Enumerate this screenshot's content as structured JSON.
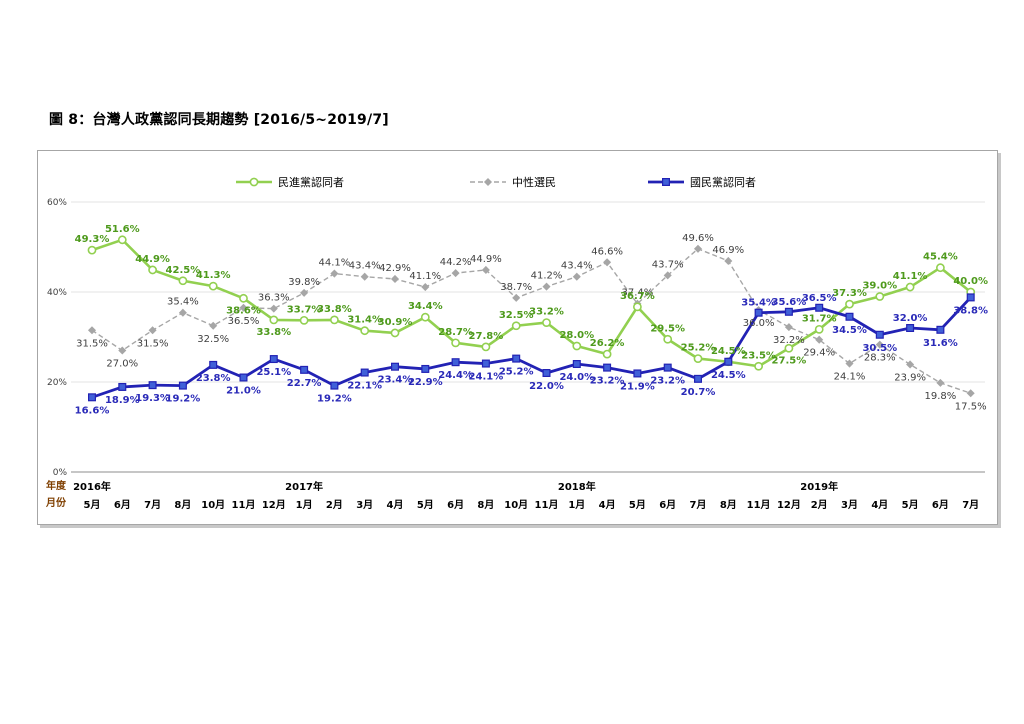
{
  "figure_title": "圖 8：台灣人政黨認同長期趨勢  [2016/5~2019/7]",
  "axis": {
    "row_label_year": "年度",
    "row_label_month": "月份",
    "yticks": [
      "0%",
      "20%",
      "40%",
      "60%"
    ]
  },
  "colors": {
    "dpp": "#92d050",
    "dpp_label": "#4e9a1c",
    "neutral": "#a6a6a6",
    "neutral_label": "#404040",
    "kmt": "#2222b4",
    "kmt_label": "#2a2ab8",
    "axis_label": "#7f3f00"
  },
  "chart_data": {
    "type": "line",
    "title": "",
    "ylabel": "",
    "ylim": [
      0,
      60
    ],
    "grid": true,
    "legend_position": "top",
    "categories": [
      "5月",
      "6月",
      "7月",
      "8月",
      "10月",
      "11月",
      "12月",
      "1月",
      "2月",
      "3月",
      "4月",
      "5月",
      "6月",
      "8月",
      "10月",
      "11月",
      "1月",
      "4月",
      "5月",
      "6月",
      "7月",
      "8月",
      "11月",
      "12月",
      "2月",
      "3月",
      "4月",
      "5月",
      "6月",
      "7月"
    ],
    "year_labels": [
      {
        "index": 0,
        "label": "2016年"
      },
      {
        "index": 7,
        "label": "2017年"
      },
      {
        "index": 16,
        "label": "2018年"
      },
      {
        "index": 24,
        "label": "2019年"
      }
    ],
    "series": [
      {
        "name": "民進黨認同者",
        "key": "dpp",
        "values": [
          49.3,
          51.6,
          44.9,
          42.5,
          41.3,
          38.6,
          33.8,
          33.7,
          33.8,
          31.4,
          30.9,
          34.4,
          28.7,
          27.8,
          32.5,
          33.2,
          28.0,
          26.2,
          36.7,
          29.5,
          25.2,
          24.5,
          23.5,
          27.5,
          31.7,
          37.3,
          39.0,
          41.1,
          45.4,
          40.0
        ],
        "labels": [
          "49.3%",
          "51.6%",
          "44.9%",
          "42.5%",
          "41.3%",
          "38.6%",
          "33.8%",
          "33.7%",
          "33.8%",
          "31.4%",
          "30.9%",
          "34.4%",
          "28.7%",
          "27.8%",
          "32.5%",
          "33.2%",
          "28.0%",
          "26.2%",
          "36.7%",
          "29.5%",
          "25.2%",
          "24.5%",
          "23.5%",
          "27.5%",
          "31.7%",
          "37.3%",
          "39.0%",
          "41.1%",
          "45.4%",
          "40.0%"
        ]
      },
      {
        "name": "中性選民",
        "key": "neutral",
        "values": [
          31.5,
          27.0,
          31.5,
          35.4,
          32.5,
          36.5,
          36.3,
          39.8,
          44.1,
          43.4,
          42.9,
          41.1,
          44.2,
          44.9,
          38.7,
          41.2,
          43.4,
          46.6,
          37.4,
          43.7,
          49.6,
          46.9,
          36.0,
          32.2,
          29.4,
          24.1,
          28.3,
          23.9,
          19.8,
          17.5
        ],
        "labels": [
          "31.5%",
          "27.0%",
          "31.5%",
          "35.4%",
          "32.5%",
          "36.5%",
          "36.3%",
          "39.8%",
          "44.1%",
          "43.4%",
          "42.9%",
          "41.1%",
          "44.2%",
          "44.9%",
          "38.7%",
          "41.2%",
          "43.4%",
          "46.6%",
          "37.4%",
          "43.7%",
          "49.6%",
          "46.9%",
          "36.0%",
          "32.2%",
          "29.4%",
          "24.1%",
          "28.3%",
          "23.9%",
          "19.8%",
          "17.5%"
        ]
      },
      {
        "name": "國民黨認同者",
        "key": "kmt",
        "values": [
          16.6,
          18.9,
          19.3,
          19.2,
          23.8,
          21.0,
          25.1,
          22.7,
          19.2,
          22.1,
          23.4,
          22.9,
          24.4,
          24.1,
          25.2,
          22.0,
          24.0,
          23.2,
          21.9,
          23.2,
          20.7,
          24.5,
          35.4,
          35.6,
          36.5,
          34.5,
          30.5,
          32.0,
          31.6,
          38.8
        ],
        "labels": [
          "16.6%",
          "18.9%",
          "19.3%",
          "19.2%",
          "23.8%",
          "21.0%",
          "25.1%",
          "22.7%",
          "19.2%",
          "22.1%",
          "23.4%",
          "22.9%",
          "24.4%",
          "24.1%",
          "25.2%",
          "22.0%",
          "24.0%",
          "23.2%",
          "21.9%",
          "23.2%",
          "20.7%",
          "24.5%",
          "35.4%",
          "35.6%",
          "36.5%",
          "34.5%",
          "30.5%",
          "32.0%",
          "31.6%",
          "38.8%"
        ]
      }
    ]
  }
}
